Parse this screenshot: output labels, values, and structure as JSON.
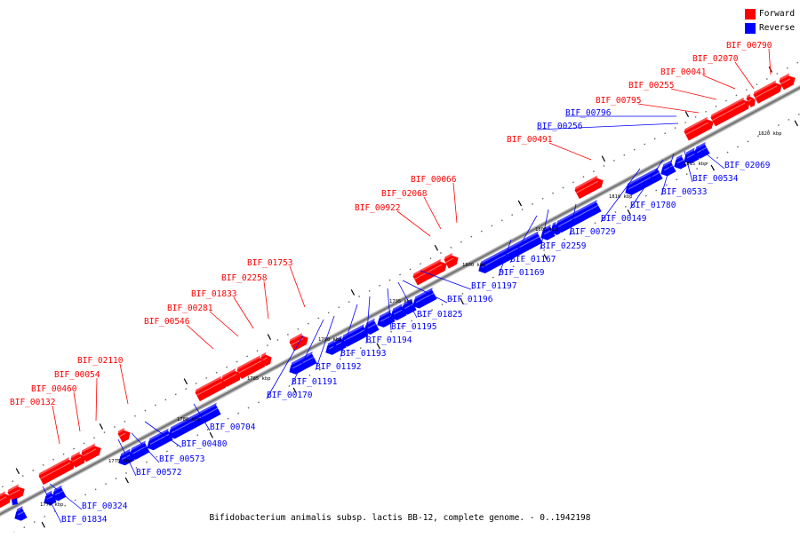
{
  "legend": {
    "items": [
      {
        "label": "Forward",
        "color": "#ff0000"
      },
      {
        "label": "Reverse",
        "color": "#0000ff"
      }
    ]
  },
  "footer": {
    "caption": "Bifidobacterium animalis subsp. lactis BB-12, complete genome. - 0..1942198"
  },
  "colors": {
    "forward": "#ff0000",
    "reverse": "#0000ff",
    "backbone": "#888888",
    "tick": "#000000"
  },
  "scale": {
    "labels": [
      "1770 kbp",
      "1775 kbp",
      "1780 kbp",
      "1785 kbp",
      "1790 kbp",
      "1795 kbp",
      "1800 kbp",
      "1805 kbp",
      "1810 kbp",
      "1815 kbp",
      "1820 kbp"
    ]
  },
  "forward_genes": [
    "BIF_00132",
    "BIF_00460",
    "BIF_00054",
    "BIF_02110",
    "BIF_00546",
    "BIF_00281",
    "BIF_01833",
    "BIF_02258",
    "BIF_01753",
    "BIF_00922",
    "BIF_02068",
    "BIF_00066",
    "BIF_00491",
    "BIF_00795",
    "BIF_00255",
    "BIF_00041",
    "BIF_02070",
    "BIF_00790"
  ],
  "reverse_genes": [
    "BIF_00796",
    "BIF_00256",
    "BIF_00324",
    "BIF_01834",
    "BIF_00572",
    "BIF_00573",
    "BIF_00480",
    "BIF_00704",
    "BIF_00170",
    "BIF_01191",
    "BIF_01192",
    "BIF_01193",
    "BIF_01194",
    "BIF_01195",
    "BIF_01825",
    "BIF_01196",
    "BIF_01197",
    "BIF_01169",
    "BIF_01167",
    "BIF_02259",
    "BIF_00729",
    "BIF_00149",
    "BIF_01780",
    "BIF_00533",
    "BIF_00534",
    "BIF_02069"
  ]
}
